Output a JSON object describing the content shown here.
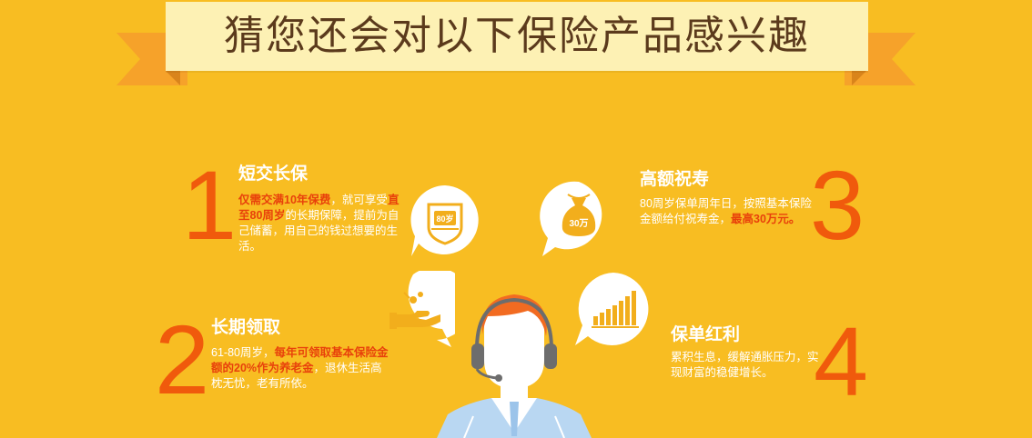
{
  "banner": {
    "title": "猜您还会对以下保险产品感兴趣"
  },
  "features": [
    {
      "number": "1",
      "title": "短交长保",
      "desc": [
        {
          "t": "仅需交满10年保费",
          "h": true
        },
        {
          "t": "，就可享",
          "h": false
        },
        {
          "t": "受",
          "h": false
        },
        {
          "t": "直至80周岁",
          "h": true
        },
        {
          "t": "的长期保障，",
          "h": false
        },
        {
          "t": "提前为自己储蓄，用自己的",
          "h": false
        },
        {
          "t": "钱过想要的生活。",
          "h": false
        }
      ]
    },
    {
      "number": "2",
      "title": "长期领取",
      "desc": [
        {
          "t": "61-80周岁，",
          "h": false
        },
        {
          "t": "每年可领取基本保",
          "h": true
        },
        {
          "t": "险金额的20%作为养老金",
          "h": true
        },
        {
          "t": "，退",
          "h": false
        },
        {
          "t": "休生活高枕无忧，老有所依。",
          "h": false
        }
      ]
    },
    {
      "number": "3",
      "title": "高额祝寿",
      "desc": [
        {
          "t": "80周岁保单周年日，",
          "h": false
        },
        {
          "t": "按照基本保险金额给付祝寿金，",
          "h": false
        },
        {
          "t": "最高30万元。",
          "h": true
        }
      ]
    },
    {
      "number": "4",
      "title": "保单红利",
      "desc": [
        {
          "t": "累积生息，缓解通胀压力，",
          "h": false
        },
        {
          "t": "实现财富的稳健增长。",
          "h": false
        }
      ]
    }
  ],
  "icons": {
    "badge_text": "80岁",
    "bag_text": "30万"
  },
  "colors": {
    "background": "#f8bd22",
    "ribbon": "#fdf1b4",
    "ribbon_tail": "#f6a22a",
    "number": "#f05a0c",
    "highlight": "#e8410b",
    "icon": "#f2ae1c"
  }
}
